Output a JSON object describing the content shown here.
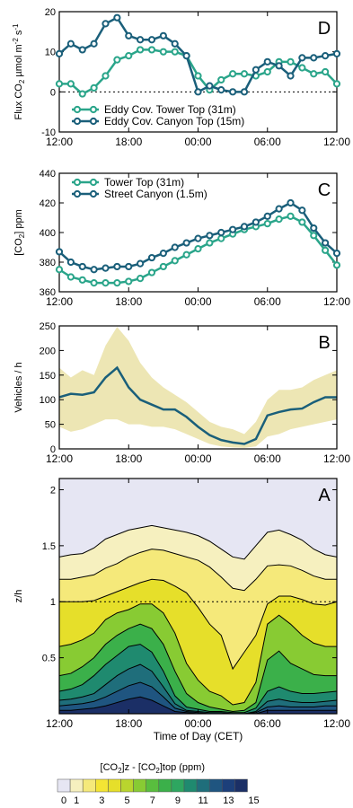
{
  "chart_data": [
    {
      "panel": "D",
      "type": "line",
      "ylabel": "Flux CO2  µmol m-2 s-1",
      "ylim": [
        -10,
        20
      ],
      "yticks": [
        -10,
        0,
        10,
        20
      ],
      "xticks": [
        "12:00",
        "18:00",
        "00:00",
        "06:00",
        "12:00"
      ],
      "reference_line": 0,
      "legend_position": "bottom-left",
      "x_hours": [
        12,
        13,
        14,
        15,
        16,
        17,
        18,
        19,
        20,
        21,
        22,
        23,
        24,
        25,
        26,
        27,
        28,
        29,
        30,
        31,
        32,
        33,
        34,
        35,
        36
      ],
      "series": [
        {
          "name": "Eddy Cov. Tower Top (31m)",
          "color": "#2aa58a",
          "values": [
            2,
            2,
            -0.5,
            1,
            4,
            8,
            9,
            10.5,
            10.5,
            10,
            10,
            9,
            4,
            0.5,
            3,
            4.5,
            4.5,
            4,
            5,
            7.5,
            7.5,
            6,
            4.5,
            5,
            2
          ]
        },
        {
          "name": "Eddy Cov. Canyon Top (15m)",
          "color": "#1a5f7a",
          "values": [
            9.5,
            12,
            10.5,
            12,
            17,
            18.5,
            14,
            13,
            13,
            14,
            12,
            9,
            0,
            1.5,
            0.5,
            0,
            0,
            5.5,
            7.5,
            6.5,
            4,
            8.5,
            8.5,
            9,
            9.5
          ]
        }
      ]
    },
    {
      "panel": "C",
      "type": "line",
      "ylabel": "[CO2] ppm",
      "ylim": [
        360,
        440
      ],
      "yticks": [
        360,
        380,
        400,
        420,
        440
      ],
      "xticks": [
        "12:00",
        "18:00",
        "00:00",
        "06:00",
        "12:00"
      ],
      "legend_position": "top-left",
      "x_hours": [
        12,
        13,
        14,
        15,
        16,
        17,
        18,
        19,
        20,
        21,
        22,
        23,
        24,
        25,
        26,
        27,
        28,
        29,
        30,
        31,
        32,
        33,
        34,
        35,
        36
      ],
      "series": [
        {
          "name": "Tower Top (31m)",
          "color": "#2aa58a",
          "values": [
            375,
            370,
            368,
            366,
            366,
            366,
            367,
            369,
            373,
            377,
            381,
            385,
            389,
            393,
            396,
            399,
            402,
            404,
            406,
            409,
            411,
            407,
            398,
            388,
            378
          ]
        },
        {
          "name": "Street Canyon (1.5m)",
          "color": "#1a5f7a",
          "values": [
            387,
            380,
            377,
            375,
            376,
            377,
            377,
            379,
            383,
            386,
            390,
            393,
            396,
            398,
            400,
            402,
            404,
            407,
            411,
            416,
            420,
            415,
            403,
            393,
            386
          ]
        }
      ]
    },
    {
      "panel": "B",
      "type": "line",
      "ylabel": "Vehicles / h",
      "ylim": [
        0,
        250
      ],
      "yticks": [
        0,
        50,
        100,
        150,
        200,
        250
      ],
      "xticks": [
        "12:00",
        "18:00",
        "00:00",
        "06:00",
        "12:00"
      ],
      "x_hours": [
        12,
        13,
        14,
        15,
        16,
        17,
        18,
        19,
        20,
        21,
        22,
        23,
        24,
        25,
        26,
        27,
        28,
        29,
        30,
        31,
        32,
        33,
        34,
        35,
        36
      ],
      "series": [
        {
          "name": "",
          "color": "#1a5f7a",
          "values": [
            105,
            112,
            110,
            115,
            145,
            165,
            125,
            100,
            90,
            80,
            80,
            65,
            45,
            28,
            18,
            13,
            10,
            20,
            68,
            75,
            80,
            82,
            95,
            105,
            105
          ]
        }
      ],
      "band": {
        "upper": [
          165,
          145,
          160,
          150,
          210,
          248,
          220,
          175,
          145,
          125,
          110,
          95,
          75,
          55,
          45,
          40,
          30,
          55,
          100,
          120,
          120,
          125,
          140,
          150,
          160
        ],
        "lower": [
          45,
          35,
          40,
          50,
          60,
          60,
          50,
          50,
          45,
          45,
          40,
          30,
          20,
          10,
          5,
          3,
          2,
          5,
          25,
          30,
          40,
          45,
          50,
          55,
          60
        ],
        "color": "#ede6b4"
      }
    },
    {
      "panel": "A",
      "type": "heatmap",
      "ylabel": "z/h",
      "xlabel": "Time of Day (CET)",
      "ylim": [
        0,
        2.1
      ],
      "yticks": [
        0.5,
        1.0,
        1.5,
        2.0
      ],
      "xticks": [
        "12:00",
        "18:00",
        "00:00",
        "06:00",
        "12:00"
      ],
      "reference_line": 1.0,
      "colorbar": {
        "title": "[CO2]z - [CO2]top (ppm)",
        "tick_labels": [
          "0",
          "1",
          "3",
          "5",
          "7",
          "9",
          "11",
          "13",
          "15"
        ],
        "colors": [
          "#e6e6f3",
          "#f6f0bf",
          "#f5e97a",
          "#f4e534",
          "#e6df2a",
          "#b9d52e",
          "#88cb33",
          "#59be3e",
          "#3bb04a",
          "#2ea660",
          "#1f8a6f",
          "#1f6e7b",
          "#1f5580",
          "#1c3f7a",
          "#1b2f66"
        ]
      },
      "x_hours": [
        12,
        13,
        14,
        15,
        16,
        17,
        18,
        19,
        20,
        21,
        22,
        23,
        24,
        25,
        26,
        27,
        28,
        29,
        30,
        31,
        32,
        33,
        34,
        35,
        36
      ],
      "contours": [
        {
          "level": 0,
          "z": [
            1.4,
            1.42,
            1.43,
            1.48,
            1.56,
            1.6,
            1.64,
            1.66,
            1.68,
            1.66,
            1.64,
            1.62,
            1.59,
            1.54,
            1.47,
            1.4,
            1.38,
            1.5,
            1.62,
            1.64,
            1.6,
            1.55,
            1.47,
            1.42,
            1.4
          ]
        },
        {
          "level": 1,
          "z": [
            1.2,
            1.2,
            1.22,
            1.24,
            1.3,
            1.34,
            1.4,
            1.44,
            1.47,
            1.46,
            1.43,
            1.4,
            1.37,
            1.31,
            1.22,
            1.12,
            1.1,
            1.2,
            1.32,
            1.33,
            1.32,
            1.28,
            1.23,
            1.2,
            1.2
          ]
        },
        {
          "level": 3,
          "z": [
            1.0,
            1.0,
            1.0,
            1.01,
            1.05,
            1.09,
            1.13,
            1.17,
            1.2,
            1.19,
            1.14,
            1.08,
            0.95,
            0.8,
            0.7,
            0.4,
            0.55,
            0.7,
            0.98,
            1.05,
            1.05,
            1.02,
            0.98,
            0.97,
            1.0
          ]
        },
        {
          "level": 5,
          "z": [
            0.6,
            0.62,
            0.66,
            0.72,
            0.84,
            0.9,
            0.93,
            0.98,
            0.98,
            0.9,
            0.72,
            0.45,
            0.3,
            0.2,
            0.16,
            0.08,
            0.1,
            0.28,
            0.8,
            0.88,
            0.8,
            0.7,
            0.63,
            0.6,
            0.6
          ]
        },
        {
          "level": 7,
          "z": [
            0.34,
            0.36,
            0.42,
            0.5,
            0.62,
            0.7,
            0.76,
            0.8,
            0.76,
            0.62,
            0.38,
            0.18,
            0.1,
            0.06,
            0.04,
            0.02,
            0.03,
            0.1,
            0.48,
            0.56,
            0.45,
            0.4,
            0.35,
            0.34,
            0.34
          ]
        },
        {
          "level": 9,
          "z": [
            0.2,
            0.22,
            0.26,
            0.34,
            0.44,
            0.52,
            0.6,
            0.62,
            0.55,
            0.38,
            0.16,
            0.06,
            0.04,
            0.02,
            0.02,
            0.01,
            0.01,
            0.05,
            0.2,
            0.24,
            0.2,
            0.18,
            0.18,
            0.19,
            0.2
          ]
        },
        {
          "level": 11,
          "z": [
            0.12,
            0.13,
            0.15,
            0.18,
            0.26,
            0.34,
            0.4,
            0.44,
            0.38,
            0.24,
            0.09,
            0.03,
            0.02,
            0.01,
            0.01,
            0.0,
            0.0,
            0.02,
            0.11,
            0.13,
            0.11,
            0.1,
            0.1,
            0.11,
            0.12
          ]
        },
        {
          "level": 13,
          "z": [
            0.07,
            0.08,
            0.09,
            0.11,
            0.15,
            0.2,
            0.25,
            0.28,
            0.24,
            0.15,
            0.05,
            0.02,
            0.01,
            0.0,
            0.0,
            0.0,
            0.0,
            0.01,
            0.06,
            0.07,
            0.06,
            0.06,
            0.06,
            0.07,
            0.07
          ]
        },
        {
          "level": 15,
          "z": [
            0.03,
            0.03,
            0.04,
            0.05,
            0.07,
            0.1,
            0.13,
            0.15,
            0.12,
            0.07,
            0.02,
            0.01,
            0.0,
            0.0,
            0.0,
            0.0,
            0.0,
            0.0,
            0.03,
            0.03,
            0.03,
            0.03,
            0.03,
            0.03,
            0.03
          ]
        }
      ]
    }
  ]
}
